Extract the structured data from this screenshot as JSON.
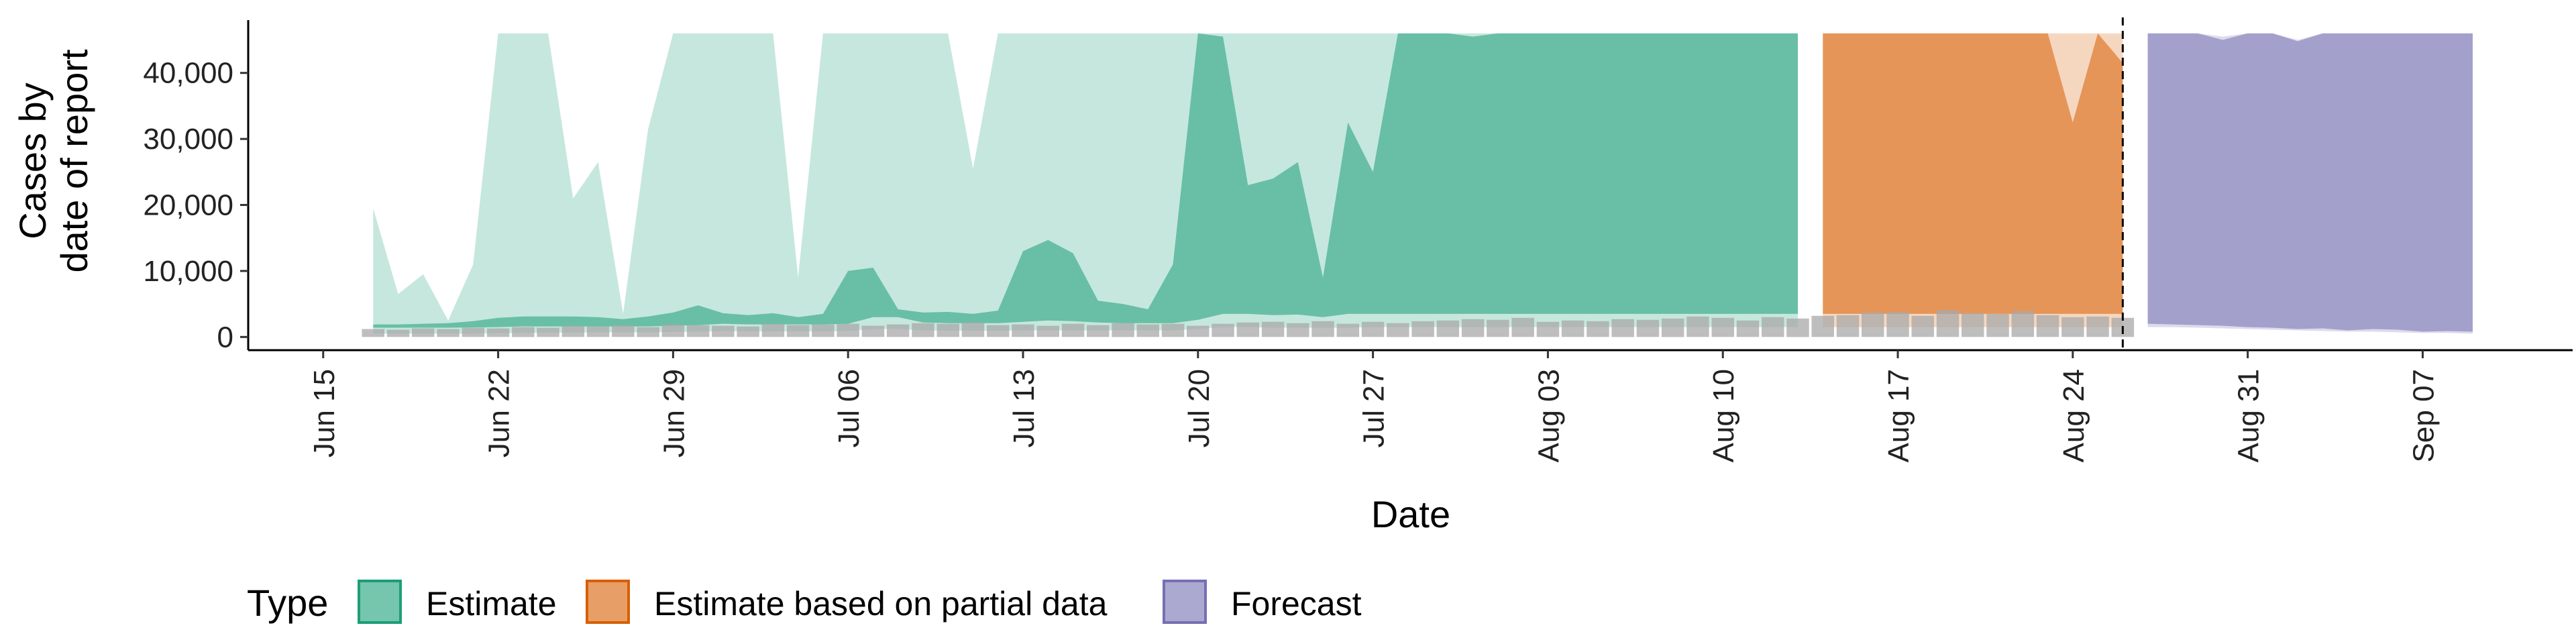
{
  "chart_data": {
    "type": "area",
    "xlabel": "Date",
    "ylabel_lines": [
      "Cases by",
      "date of report"
    ],
    "x_domain": [
      "2020-06-12",
      "2020-09-13"
    ],
    "ylim": [
      -2000,
      48000
    ],
    "y_ticks": [
      0,
      10000,
      20000,
      30000,
      40000
    ],
    "y_tick_labels": [
      "0",
      "10,000",
      "20,000",
      "30,000",
      "40,000"
    ],
    "x_ticks": [
      "2020-06-15",
      "2020-06-22",
      "2020-06-29",
      "2020-07-06",
      "2020-07-13",
      "2020-07-20",
      "2020-07-27",
      "2020-08-03",
      "2020-08-10",
      "2020-08-17",
      "2020-08-24",
      "2020-08-31",
      "2020-09-07"
    ],
    "x_tick_labels": [
      "Jun 15",
      "Jun 22",
      "Jun 29",
      "Jul 06",
      "Jul 13",
      "Jul 20",
      "Jul 27",
      "Aug 03",
      "Aug 10",
      "Aug 17",
      "Aug 24",
      "Aug 31",
      "Sep 07"
    ],
    "cap": 46000,
    "vline_date": "2020-08-26",
    "legend_title": "Type",
    "grid": false,
    "legend_position": "bottom-left",
    "series": [
      {
        "name": "Estimate",
        "color": "#1b9e77",
        "x": [
          "2020-06-17",
          "2020-06-18",
          "2020-06-19",
          "2020-06-20",
          "2020-06-21",
          "2020-06-22",
          "2020-06-23",
          "2020-06-24",
          "2020-06-25",
          "2020-06-26",
          "2020-06-27",
          "2020-06-28",
          "2020-06-29",
          "2020-06-30",
          "2020-07-01",
          "2020-07-02",
          "2020-07-03",
          "2020-07-04",
          "2020-07-05",
          "2020-07-06",
          "2020-07-07",
          "2020-07-08",
          "2020-07-09",
          "2020-07-10",
          "2020-07-11",
          "2020-07-12",
          "2020-07-13",
          "2020-07-14",
          "2020-07-15",
          "2020-07-16",
          "2020-07-17",
          "2020-07-18",
          "2020-07-19",
          "2020-07-20",
          "2020-07-21",
          "2020-07-22",
          "2020-07-23",
          "2020-07-24",
          "2020-07-25",
          "2020-07-26",
          "2020-07-27",
          "2020-07-28",
          "2020-07-29",
          "2020-07-30",
          "2020-07-31",
          "2020-08-01",
          "2020-08-02",
          "2020-08-03",
          "2020-08-04",
          "2020-08-05",
          "2020-08-06",
          "2020-08-07",
          "2020-08-08",
          "2020-08-09",
          "2020-08-10",
          "2020-08-11",
          "2020-08-12",
          "2020-08-13"
        ],
        "lower_90": [
          500,
          500,
          500,
          500,
          500,
          550,
          600,
          650,
          650,
          700,
          700,
          700,
          750,
          800,
          900,
          850,
          850,
          850,
          850,
          900,
          1200,
          1200,
          1000,
          950,
          950,
          950,
          1000,
          1000,
          1000,
          1000,
          1000,
          1000,
          1000,
          1200,
          1500,
          1500,
          1400,
          1400,
          1400,
          1400,
          1500,
          1500,
          1500,
          1500,
          1500,
          1500,
          1500,
          1500,
          1500,
          1500,
          1500,
          1500,
          1500,
          1500,
          1500,
          1500,
          1500,
          1500
        ],
        "upper_90": [
          19500,
          6500,
          9500,
          2500,
          11000,
          46000,
          46000,
          46000,
          21000,
          26500,
          3500,
          31500,
          46000,
          46000,
          46000,
          46000,
          46000,
          9000,
          46000,
          46000,
          46000,
          46000,
          46000,
          46000,
          25500,
          46000,
          46000,
          46000,
          46000,
          46000,
          46000,
          46000,
          46000,
          46000,
          46000,
          46000,
          46000,
          46000,
          46000,
          46000,
          46000,
          46000,
          46000,
          46000,
          46000,
          46000,
          46000,
          46000,
          46000,
          46000,
          46000,
          46000,
          46000,
          46000,
          46000,
          46000,
          46000,
          46000
        ],
        "lower_50": [
          1400,
          1400,
          1400,
          1400,
          1450,
          1500,
          1600,
          1600,
          1600,
          1600,
          1600,
          1600,
          1700,
          1800,
          2000,
          1900,
          1900,
          1900,
          1900,
          2000,
          3000,
          3000,
          2200,
          2100,
          2100,
          2100,
          2300,
          2500,
          2400,
          2200,
          2100,
          2100,
          2100,
          2600,
          3500,
          3500,
          3300,
          3400,
          3000,
          3500,
          3500,
          3500,
          3500,
          3500,
          3500,
          3500,
          3500,
          3500,
          3500,
          3500,
          3500,
          3500,
          3500,
          3500,
          3500,
          3500,
          3500,
          3500
        ],
        "upper_50": [
          1900,
          1900,
          2000,
          2100,
          2400,
          2900,
          3100,
          3100,
          3100,
          3000,
          2700,
          3100,
          3700,
          4800,
          3600,
          3300,
          3600,
          3000,
          3500,
          10000,
          10500,
          4200,
          3700,
          3800,
          3500,
          4000,
          13000,
          14700,
          12700,
          5500,
          5000,
          4200,
          11000,
          46000,
          45500,
          23000,
          24000,
          26500,
          9000,
          32500,
          25000,
          46000,
          46000,
          46000,
          45500,
          46000,
          46000,
          46000,
          46000,
          46000,
          46000,
          46000,
          46000,
          46000,
          46000,
          46000,
          46000,
          46000
        ]
      },
      {
        "name": "Estimate based on partial data",
        "color": "#d95f02",
        "x": [
          "2020-08-14",
          "2020-08-15",
          "2020-08-16",
          "2020-08-17",
          "2020-08-18",
          "2020-08-19",
          "2020-08-20",
          "2020-08-21",
          "2020-08-22",
          "2020-08-23",
          "2020-08-24",
          "2020-08-25",
          "2020-08-26"
        ],
        "lower_90": [
          1500,
          1500,
          1500,
          1500,
          1500,
          1500,
          1500,
          1500,
          1500,
          1500,
          1500,
          1500,
          1500
        ],
        "upper_90": [
          46000,
          46000,
          46000,
          46000,
          46000,
          46000,
          46000,
          46000,
          46000,
          46000,
          46000,
          46000,
          46000
        ],
        "lower_50": [
          3500,
          3500,
          3500,
          3500,
          3500,
          3500,
          3500,
          3500,
          3500,
          3500,
          3500,
          3500,
          3500
        ],
        "upper_50": [
          46000,
          46000,
          46000,
          46000,
          46000,
          46000,
          46000,
          46000,
          46000,
          46000,
          32500,
          46000,
          41500
        ]
      },
      {
        "name": "Forecast",
        "color": "#7570b3",
        "x": [
          "2020-08-27",
          "2020-08-28",
          "2020-08-29",
          "2020-08-30",
          "2020-08-31",
          "2020-09-01",
          "2020-09-02",
          "2020-09-03",
          "2020-09-04",
          "2020-09-05",
          "2020-09-06",
          "2020-09-07",
          "2020-09-08",
          "2020-09-09"
        ],
        "lower_90": [
          1500,
          1500,
          1400,
          1300,
          1200,
          1100,
          1000,
          900,
          800,
          800,
          700,
          600,
          600,
          500
        ],
        "upper_90": [
          46000,
          46000,
          46000,
          45500,
          46000,
          46000,
          45000,
          46000,
          46000,
          46000,
          46000,
          46000,
          46000,
          46000
        ],
        "lower_50": [
          2000,
          1900,
          1800,
          1700,
          1500,
          1400,
          1200,
          1300,
          1000,
          1200,
          1100,
          800,
          900,
          800
        ],
        "upper_50": [
          46000,
          46000,
          46000,
          45000,
          46000,
          46000,
          44800,
          46000,
          46000,
          46000,
          46000,
          46000,
          46000,
          46000
        ]
      }
    ],
    "reported_cases": {
      "color": "#a8a8a8",
      "x": [
        "2020-06-17",
        "2020-06-18",
        "2020-06-19",
        "2020-06-20",
        "2020-06-21",
        "2020-06-22",
        "2020-06-23",
        "2020-06-24",
        "2020-06-25",
        "2020-06-26",
        "2020-06-27",
        "2020-06-28",
        "2020-06-29",
        "2020-06-30",
        "2020-07-01",
        "2020-07-02",
        "2020-07-03",
        "2020-07-04",
        "2020-07-05",
        "2020-07-06",
        "2020-07-07",
        "2020-07-08",
        "2020-07-09",
        "2020-07-10",
        "2020-07-11",
        "2020-07-12",
        "2020-07-13",
        "2020-07-14",
        "2020-07-15",
        "2020-07-16",
        "2020-07-17",
        "2020-07-18",
        "2020-07-19",
        "2020-07-20",
        "2020-07-21",
        "2020-07-22",
        "2020-07-23",
        "2020-07-24",
        "2020-07-25",
        "2020-07-26",
        "2020-07-27",
        "2020-07-28",
        "2020-07-29",
        "2020-07-30",
        "2020-07-31",
        "2020-08-01",
        "2020-08-02",
        "2020-08-03",
        "2020-08-04",
        "2020-08-05",
        "2020-08-06",
        "2020-08-07",
        "2020-08-08",
        "2020-08-09",
        "2020-08-10",
        "2020-08-11",
        "2020-08-12",
        "2020-08-13",
        "2020-08-14",
        "2020-08-15",
        "2020-08-16",
        "2020-08-17",
        "2020-08-18",
        "2020-08-19",
        "2020-08-20",
        "2020-08-21",
        "2020-08-22",
        "2020-08-23",
        "2020-08-24",
        "2020-08-25",
        "2020-08-26"
      ],
      "values": [
        1200,
        1100,
        1300,
        1200,
        1400,
        1300,
        1500,
        1400,
        1700,
        1600,
        1800,
        1500,
        1900,
        1800,
        1700,
        1600,
        2000,
        1800,
        1900,
        2000,
        1700,
        1900,
        2100,
        2000,
        2200,
        1800,
        1900,
        1700,
        2000,
        1800,
        2100,
        1900,
        2000,
        1700,
        2000,
        2200,
        2300,
        2100,
        2400,
        2000,
        2300,
        2100,
        2400,
        2500,
        2700,
        2600,
        2900,
        2300,
        2500,
        2400,
        2700,
        2600,
        2800,
        3100,
        2900,
        2500,
        3000,
        2800,
        3200,
        3300,
        3700,
        3800,
        3200,
        4100,
        3600,
        3500,
        3900,
        3300,
        3000,
        3100,
        2900
      ]
    }
  }
}
